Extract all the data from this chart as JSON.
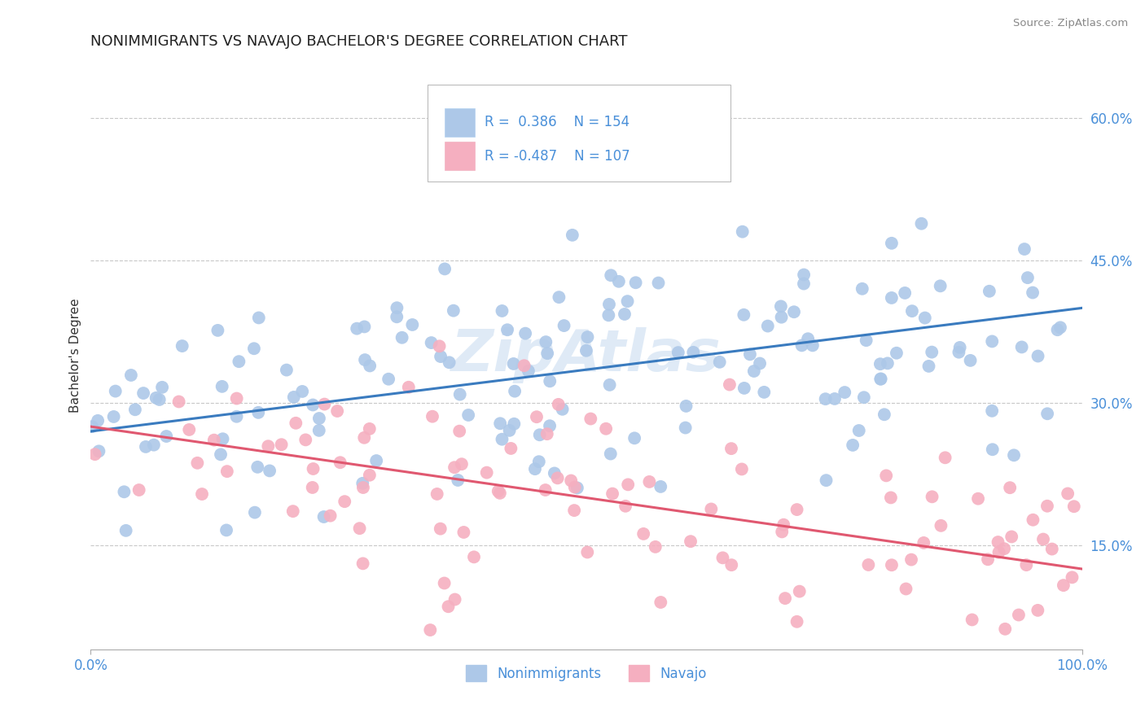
{
  "title": "NONIMMIGRANTS VS NAVAJO BACHELOR'S DEGREE CORRELATION CHART",
  "source": "Source: ZipAtlas.com",
  "ylabel": "Bachelor's Degree",
  "xmin": 0.0,
  "xmax": 1.0,
  "ymin": 0.04,
  "ymax": 0.66,
  "ytick_labels": [
    "15.0%",
    "30.0%",
    "45.0%",
    "60.0%"
  ],
  "ytick_values": [
    0.15,
    0.3,
    0.45,
    0.6
  ],
  "blue_r": "0.386",
  "blue_n": "154",
  "pink_r": "-0.487",
  "pink_n": "107",
  "blue_color": "#adc8e8",
  "pink_color": "#f5afc0",
  "blue_line_color": "#3a7bbf",
  "pink_line_color": "#e05870",
  "text_color": "#4a90d9",
  "watermark": "ZipAtlas",
  "background_color": "#ffffff",
  "grid_color": "#c8c8c8",
  "blue_line_start_y": 0.27,
  "blue_line_end_y": 0.4,
  "pink_line_start_y": 0.275,
  "pink_line_end_y": 0.125
}
